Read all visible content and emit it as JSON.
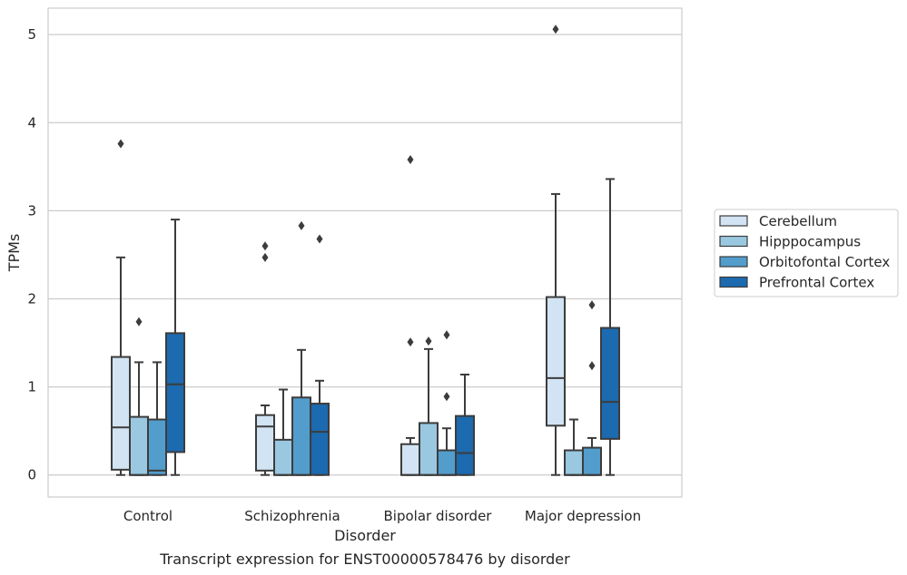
{
  "chart_data": {
    "type": "boxplot",
    "xlabel": "Disorder",
    "ylabel": "TPMs",
    "caption": "Transcript expression for ENST00000578476 by disorder",
    "ylim": [
      -0.25,
      5.3
    ],
    "yticks": [
      0,
      1,
      2,
      3,
      4,
      5
    ],
    "grid": true,
    "legend_position": "right",
    "categories": [
      "Control",
      "Schizophrenia",
      "Bipolar disorder",
      "Major depression"
    ],
    "series": [
      {
        "name": "Cerebellum",
        "color": "#d2e3f3",
        "boxes": [
          {
            "whislo": 0.0,
            "q1": 0.06,
            "med": 0.54,
            "q3": 1.34,
            "whishi": 2.47,
            "fliers": [
              3.76
            ]
          },
          {
            "whislo": 0.0,
            "q1": 0.05,
            "med": 0.55,
            "q3": 0.68,
            "whishi": 0.79,
            "fliers": [
              2.47,
              2.6
            ]
          },
          {
            "whislo": 0.0,
            "q1": 0.0,
            "med": 0.0,
            "q3": 0.35,
            "whishi": 0.42,
            "fliers": [
              1.51,
              3.58
            ]
          },
          {
            "whislo": 0.0,
            "q1": 0.56,
            "med": 1.1,
            "q3": 2.02,
            "whishi": 3.19,
            "fliers": [
              5.06
            ]
          }
        ]
      },
      {
        "name": "Hipppocampus",
        "color": "#9ac8e0",
        "boxes": [
          {
            "whislo": 0.0,
            "q1": 0.0,
            "med": 0.0,
            "q3": 0.66,
            "whishi": 1.28,
            "fliers": [
              1.74
            ]
          },
          {
            "whislo": 0.0,
            "q1": 0.0,
            "med": 0.0,
            "q3": 0.4,
            "whishi": 0.97,
            "fliers": []
          },
          {
            "whislo": 0.0,
            "q1": 0.0,
            "med": 0.0,
            "q3": 0.59,
            "whishi": 1.43,
            "fliers": [
              1.52
            ]
          },
          {
            "whislo": 0.0,
            "q1": 0.0,
            "med": 0.0,
            "q3": 0.28,
            "whishi": 0.63,
            "fliers": []
          }
        ]
      },
      {
        "name": "Orbitofontal Cortex",
        "color": "#529dcc",
        "boxes": [
          {
            "whislo": 0.0,
            "q1": 0.0,
            "med": 0.05,
            "q3": 0.63,
            "whishi": 1.28,
            "fliers": []
          },
          {
            "whislo": 0.0,
            "q1": 0.0,
            "med": 0.0,
            "q3": 0.88,
            "whishi": 1.42,
            "fliers": [
              2.83
            ]
          },
          {
            "whislo": 0.0,
            "q1": 0.0,
            "med": 0.0,
            "q3": 0.28,
            "whishi": 0.53,
            "fliers": [
              0.89,
              1.59
            ]
          },
          {
            "whislo": 0.0,
            "q1": 0.0,
            "med": 0.0,
            "q3": 0.31,
            "whishi": 0.42,
            "fliers": [
              1.24,
              1.93
            ]
          }
        ]
      },
      {
        "name": "Prefrontal Cortex",
        "color": "#1c6aaf",
        "boxes": [
          {
            "whislo": 0.0,
            "q1": 0.26,
            "med": 1.03,
            "q3": 1.61,
            "whishi": 2.9,
            "fliers": []
          },
          {
            "whislo": 0.0,
            "q1": 0.0,
            "med": 0.49,
            "q3": 0.81,
            "whishi": 1.07,
            "fliers": [
              2.68
            ]
          },
          {
            "whislo": 0.0,
            "q1": 0.0,
            "med": 0.25,
            "q3": 0.67,
            "whishi": 1.14,
            "fliers": []
          },
          {
            "whislo": 0.0,
            "q1": 0.41,
            "med": 0.83,
            "q3": 1.67,
            "whishi": 3.36,
            "fliers": []
          }
        ]
      }
    ]
  }
}
